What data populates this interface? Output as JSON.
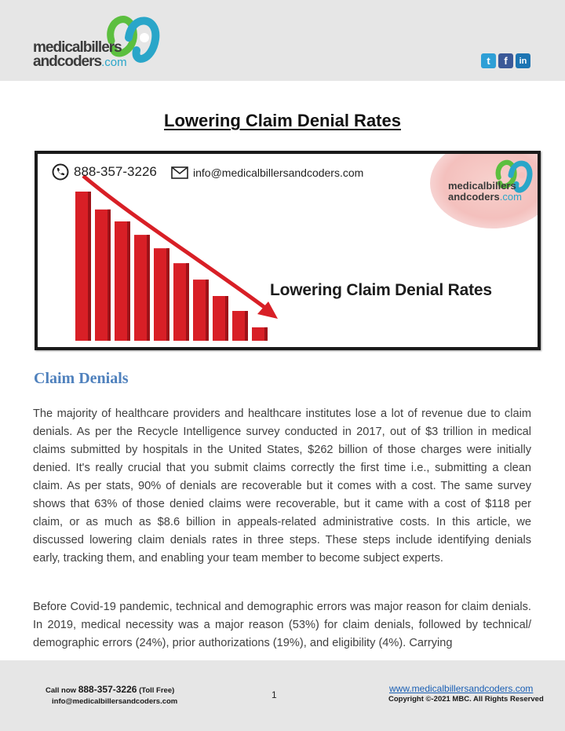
{
  "header": {
    "logo": {
      "line1": "medicalbillers",
      "line2": "andcoders",
      "suffix": ".com"
    },
    "social": {
      "twitter": "t",
      "facebook": "f",
      "linkedin": "in"
    }
  },
  "title": "Lowering Claim Denial Rates",
  "banner": {
    "phone": "888-357-3226",
    "email": "info@medicalbillersandcoders.com",
    "caption": "Lowering Claim Denial Rates",
    "logo": {
      "line1": "medicalbillers",
      "line2": "andcoders",
      "suffix": ".com"
    },
    "bar_levels": [
      1.0,
      0.88,
      0.8,
      0.71,
      0.62,
      0.52,
      0.41,
      0.3,
      0.2,
      0.09
    ],
    "colors": {
      "bar": "#d81f26",
      "arrow": "#d81f26"
    }
  },
  "section_heading": "Claim Denials",
  "paragraphs": [
    "The majority of healthcare providers and healthcare institutes lose a lot of revenue due to claim denials. As per the Recycle Intelligence survey conducted in 2017, out of $3 trillion in medical claims submitted by hospitals in the United States, $262 billion of those charges were initially denied. It's really crucial that you submit claims correctly the first time i.e., submitting a clean claim. As per stats, 90% of denials are recoverable but it comes with a cost. The same survey shows that 63% of those denied claims were recoverable, but it came with a cost of $118 per claim, or as much as $8.6 billion in appeals-related administrative costs. In this article, we discussed lowering claim denials rates in three steps. These steps include identifying denials early, tracking them, and enabling your team member to become subject experts.",
    "Before Covid-19 pandemic, technical and demographic errors was major reason for claim denials. In 2019, medical necessity was a major reason (53%) for claim denials, followed by technical/ demographic errors (24%), prior authorizations (19%), and eligibility (4%). Carrying"
  ],
  "footer": {
    "call_prefix": "Call now ",
    "call_number": "888-357-3226",
    "call_suffix": " (Toll Free)",
    "email": "info@medicalbillersandcoders.com",
    "page_number": "1",
    "website": "www.medicalbillersandcoders.com",
    "copyright": "Copyright ©-2021 MBC. All Rights Reserved"
  }
}
